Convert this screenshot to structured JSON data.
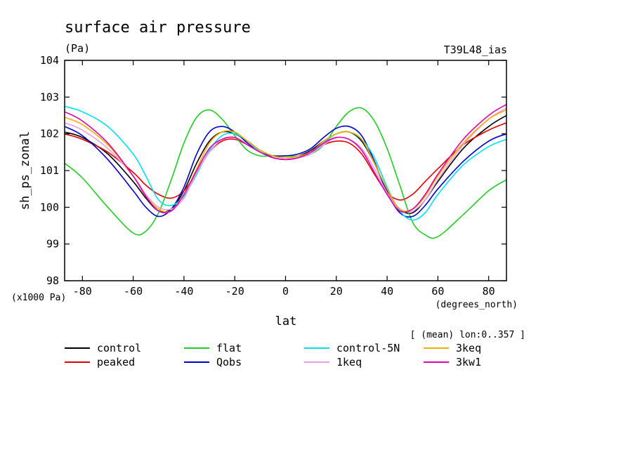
{
  "chart_data": {
    "type": "line",
    "title": "surface air pressure",
    "units": "(Pa)",
    "model_tag": "T39L48_ias",
    "xlabel": "lat",
    "x_units": "(degrees_north)",
    "ylabel": "sh_ps_zonal",
    "y_scale_note": "(x1000 Pa)",
    "subset_note": "[ (mean) lon:0..357 ]",
    "xlim": [
      -87,
      87
    ],
    "ylim": [
      98,
      104
    ],
    "x_ticks": [
      -80,
      -60,
      -40,
      -20,
      0,
      20,
      40,
      60,
      80
    ],
    "y_ticks": [
      98,
      99,
      100,
      101,
      102,
      103,
      104
    ],
    "x": [
      -87,
      -80,
      -70,
      -60,
      -55,
      -50,
      -45,
      -40,
      -35,
      -30,
      -25,
      -20,
      -15,
      -10,
      -5,
      0,
      5,
      10,
      15,
      20,
      25,
      30,
      35,
      40,
      45,
      50,
      55,
      60,
      70,
      80,
      87
    ],
    "series": [
      {
        "name": "control",
        "color": "#000000",
        "values": [
          102.05,
          101.9,
          101.45,
          100.7,
          100.25,
          99.9,
          99.95,
          100.45,
          101.2,
          101.8,
          102.05,
          102.0,
          101.8,
          101.55,
          101.4,
          101.35,
          101.4,
          101.55,
          101.8,
          102.0,
          102.05,
          101.8,
          101.2,
          100.45,
          99.95,
          99.85,
          100.2,
          100.7,
          101.6,
          102.2,
          102.5
        ]
      },
      {
        "name": "peaked",
        "color": "#e00000",
        "values": [
          102.0,
          101.85,
          101.5,
          100.95,
          100.6,
          100.35,
          100.25,
          100.45,
          100.95,
          101.5,
          101.8,
          101.85,
          101.7,
          101.5,
          101.35,
          101.3,
          101.35,
          101.5,
          101.7,
          101.8,
          101.75,
          101.45,
          100.9,
          100.4,
          100.2,
          100.35,
          100.7,
          101.05,
          101.7,
          102.1,
          102.3
        ]
      },
      {
        "name": "flat",
        "color": "#22cc22",
        "values": [
          101.2,
          100.8,
          100.0,
          99.3,
          99.35,
          99.85,
          100.75,
          101.75,
          102.45,
          102.65,
          102.4,
          101.95,
          101.55,
          101.4,
          101.4,
          101.4,
          101.4,
          101.45,
          101.7,
          102.2,
          102.6,
          102.7,
          102.35,
          101.6,
          100.6,
          99.6,
          99.25,
          99.2,
          99.8,
          100.45,
          100.75
        ]
      },
      {
        "name": "Qobs",
        "color": "#0000cc",
        "values": [
          102.2,
          101.95,
          101.3,
          100.45,
          100.0,
          99.75,
          99.95,
          100.55,
          101.45,
          102.05,
          102.2,
          102.05,
          101.75,
          101.5,
          101.4,
          101.4,
          101.45,
          101.6,
          101.9,
          102.15,
          102.2,
          101.95,
          101.25,
          100.4,
          99.85,
          99.75,
          100.05,
          100.5,
          101.25,
          101.8,
          102.0
        ]
      },
      {
        "name": "control-5N",
        "color": "#00e0f0",
        "values": [
          102.75,
          102.6,
          102.2,
          101.45,
          100.85,
          100.2,
          100.05,
          100.3,
          100.9,
          101.55,
          101.95,
          102.0,
          101.8,
          101.5,
          101.35,
          101.3,
          101.35,
          101.45,
          101.75,
          102.0,
          102.05,
          101.85,
          101.35,
          100.55,
          99.9,
          99.65,
          99.85,
          100.35,
          101.15,
          101.65,
          101.85
        ]
      },
      {
        "name": "1keq",
        "color": "#e8a0e0",
        "values": [
          102.3,
          102.1,
          101.6,
          100.85,
          100.35,
          100.0,
          99.95,
          100.25,
          100.95,
          101.5,
          101.85,
          101.9,
          101.7,
          101.5,
          101.35,
          101.3,
          101.35,
          101.45,
          101.7,
          101.9,
          101.85,
          101.6,
          101.05,
          100.4,
          99.95,
          99.9,
          100.2,
          100.75,
          101.7,
          102.4,
          102.7
        ]
      },
      {
        "name": "3keq",
        "color": "#f0b000",
        "values": [
          102.45,
          102.25,
          101.7,
          100.85,
          100.3,
          99.95,
          99.9,
          100.35,
          101.05,
          101.75,
          102.05,
          102.05,
          101.8,
          101.55,
          101.4,
          101.35,
          101.4,
          101.5,
          101.8,
          102.0,
          102.05,
          101.85,
          101.2,
          100.5,
          99.95,
          99.95,
          100.3,
          100.85,
          101.75,
          102.4,
          102.65
        ]
      },
      {
        "name": "3kw1",
        "color": "#e000b0",
        "values": [
          102.6,
          102.35,
          101.75,
          100.85,
          100.3,
          99.9,
          99.9,
          100.35,
          101.0,
          101.6,
          101.85,
          101.9,
          101.7,
          101.5,
          101.35,
          101.3,
          101.35,
          101.5,
          101.75,
          101.9,
          101.85,
          101.55,
          100.95,
          100.35,
          99.9,
          99.95,
          100.35,
          100.9,
          101.85,
          102.5,
          102.8
        ]
      }
    ]
  }
}
